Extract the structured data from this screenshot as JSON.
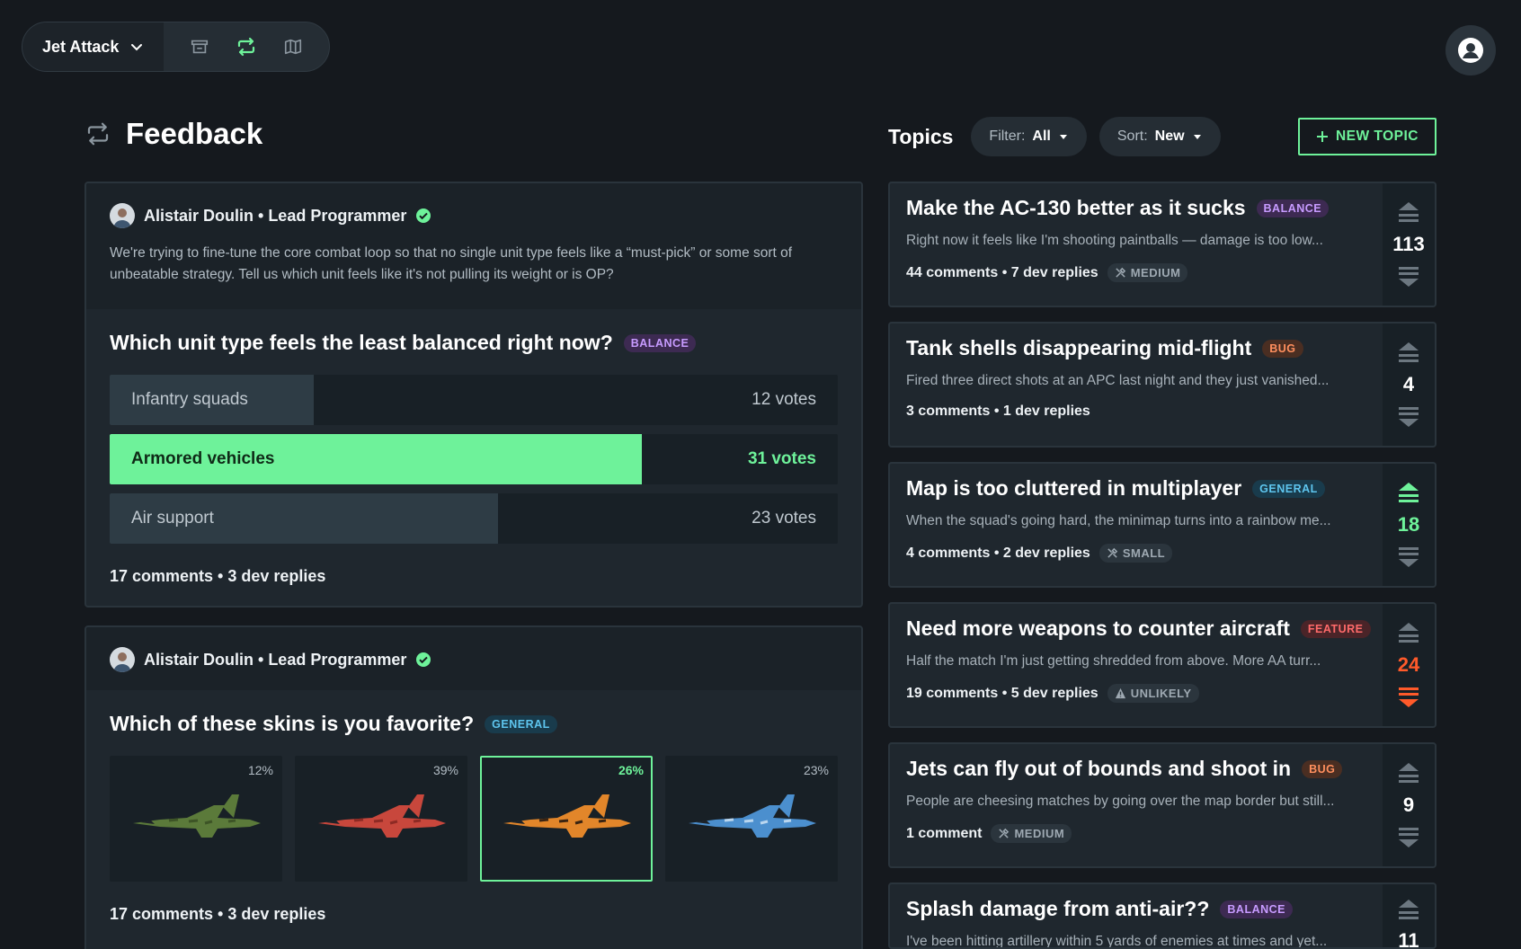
{
  "topbar": {
    "game_name": "Jet Attack",
    "nav_icons": [
      "store-icon",
      "feedback-icon",
      "map-icon"
    ]
  },
  "page": {
    "title": "Feedback"
  },
  "posts": [
    {
      "author": "Alistair Doulin • Lead Programmer",
      "description": "We're trying to fine-tune the core combat loop so that no single unit type feels like a “must-pick” or some sort of unbeatable strategy. Tell us which unit feels like it's not pulling its weight or is OP?",
      "question": "Which unit type feels the least balanced right now?",
      "tag": "BALANCE",
      "poll": [
        {
          "label": "Infantry squads",
          "votes": "12 votes",
          "share": 0.28
        },
        {
          "label": "Armored vehicles",
          "votes": "31 votes",
          "share": 0.731
        },
        {
          "label": "Air support",
          "votes": "23 votes",
          "share": 0.533
        }
      ],
      "meta": "17 comments • 3 dev replies"
    },
    {
      "author": "Alistair Doulin • Lead Programmer",
      "question": "Which of these skins is you favorite?",
      "tag": "GENERAL",
      "skins": [
        {
          "pct": "12%",
          "color": "#5b7a3a",
          "accent": "#3d5426"
        },
        {
          "pct": "39%",
          "color": "#c8473c",
          "accent": "#8e2a24"
        },
        {
          "pct": "26%",
          "color": "#e2862a",
          "accent": "#3a2412"
        },
        {
          "pct": "23%",
          "color": "#4b8fce",
          "accent": "#b9d6ef"
        }
      ],
      "meta": "17 comments • 3 dev replies"
    }
  ],
  "topics": {
    "title": "Topics",
    "filter_label": "Filter:",
    "filter_value": "All",
    "sort_label": "Sort:",
    "sort_value": "New",
    "new_topic_label": "NEW TOPIC",
    "items": [
      {
        "title": "Make the AC-130 better as it sucks",
        "tag": "BALANCE",
        "excerpt": "Right now it feels like I'm shooting paintballs — damage is too low...",
        "meta": "44 comments • 7 dev replies",
        "effort": "MEDIUM",
        "votes": "113"
      },
      {
        "title": "Tank shells disappearing mid-flight",
        "tag": "BUG",
        "excerpt": "Fired three direct shots at an APC last night and they just vanished...",
        "meta": "3 comments • 1 dev replies",
        "effort": "",
        "votes": "4"
      },
      {
        "title": "Map is too cluttered in multiplayer",
        "tag": "GENERAL",
        "excerpt": "When the squad's going hard, the minimap turns into a rainbow me...",
        "meta": "4 comments • 2 dev replies",
        "effort": "SMALL",
        "votes": "18"
      },
      {
        "title": "Need more weapons to counter aircraft",
        "tag": "FEATURE",
        "excerpt": "Half the match I'm just getting shredded from above. More AA turr...",
        "meta": "19 comments • 5 dev replies",
        "effort": "UNLIKELY",
        "votes": "24"
      },
      {
        "title": "Jets can fly out of bounds and shoot in",
        "tag": "BUG",
        "excerpt": "People are cheesing matches by going over the map border but still...",
        "meta": "1 comment",
        "effort": "MEDIUM",
        "votes": "9"
      },
      {
        "title": "Splash damage from anti-air??",
        "tag": "BALANCE",
        "excerpt": "I've been hitting artillery within 5 yards of enemies at times and yet...",
        "meta": "",
        "effort": "",
        "votes": "11"
      }
    ]
  },
  "colors": {
    "accent": "#6ef29a",
    "downvote": "#ff5a2a",
    "background": "#15191e"
  }
}
